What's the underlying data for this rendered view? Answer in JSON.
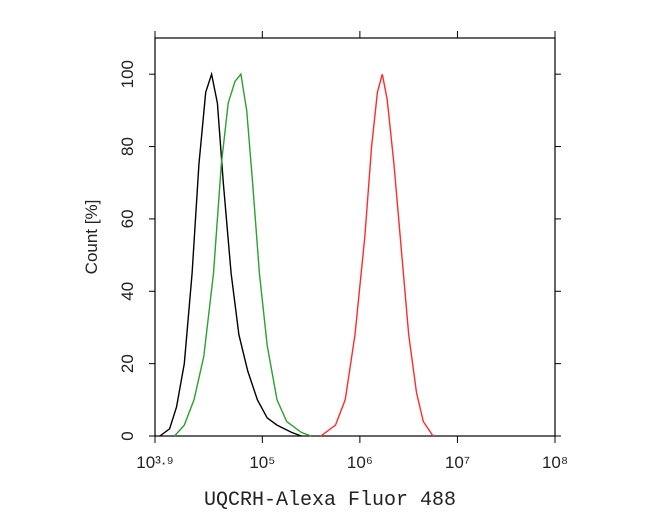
{
  "chart_data": {
    "type": "line",
    "xlabel": "UQCRH-Alexa Fluor 488",
    "ylabel": "Count [%]",
    "xscale": "log",
    "xlim": [
      7943,
      100000000
    ],
    "ylim": [
      0,
      110
    ],
    "xticks": [
      {
        "value": 7943,
        "label": "10³·⁹"
      },
      {
        "value": 100000,
        "label": "10⁵"
      },
      {
        "value": 1000000,
        "label": "10⁶"
      },
      {
        "value": 10000000,
        "label": "10⁷"
      },
      {
        "value": 100000000,
        "label": "10⁸"
      }
    ],
    "yticks": [
      0,
      20,
      40,
      60,
      80,
      100
    ],
    "grid": false,
    "series": [
      {
        "color": "#000000",
        "x": [
          8913,
          11220,
          13183,
          15849,
          19055,
          22387,
          26303,
          30200,
          34674,
          39811,
          47863,
          57544,
          70795,
          89125,
          112202,
          141254,
          199526,
          251189
        ],
        "values": [
          0,
          2,
          8,
          20,
          45,
          75,
          95,
          100,
          92,
          70,
          45,
          28,
          18,
          10,
          5,
          3,
          1,
          0
        ]
      },
      {
        "color": "#2ca02c",
        "x": [
          12589,
          15849,
          19953,
          25119,
          31623,
          38019,
          44668,
          52481,
          60256,
          69183,
          79433,
          93325,
          112202,
          141254,
          177828,
          251189,
          316228
        ],
        "values": [
          0,
          3,
          10,
          22,
          45,
          75,
          92,
          98,
          100,
          90,
          70,
          45,
          25,
          10,
          4,
          1,
          0
        ]
      },
      {
        "color": "#ff2a2a",
        "x": [
          398107,
          562341,
          707946,
          891251,
          1122018,
          1318257,
          1513561,
          1698244,
          1905461,
          2238721,
          2691535,
          3162278,
          3801894,
          4466836,
          5623413
        ],
        "values": [
          0,
          3,
          10,
          28,
          55,
          80,
          95,
          100,
          93,
          75,
          50,
          28,
          12,
          4,
          0
        ]
      }
    ]
  }
}
